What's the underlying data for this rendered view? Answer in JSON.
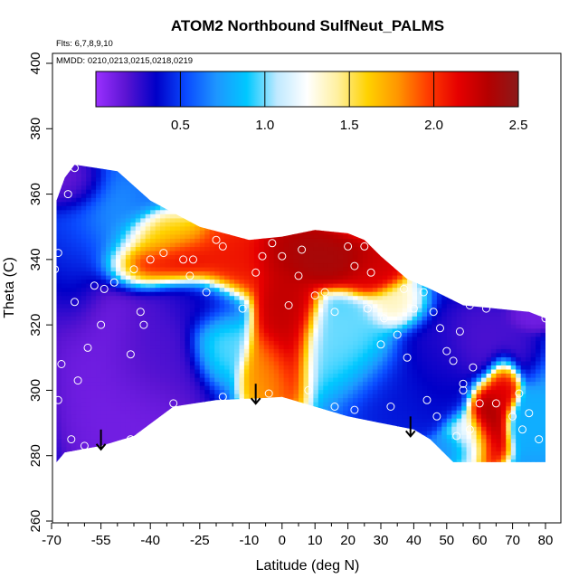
{
  "chart_data": {
    "type": "heatmap",
    "title": "ATOM2 Northbound SulfNeut_PALMS",
    "flights_note": "Flts: 6,7,8,9,10",
    "dates_note": "MMDD: 0210,0213,0215,0218,0219",
    "xlabel": "Latitude (deg N)",
    "ylabel": "Theta (C)",
    "xlim": [
      -70,
      80
    ],
    "ylim": [
      260,
      400
    ],
    "x_tick_labels": [
      -70,
      -55,
      -40,
      -25,
      -10,
      0,
      10,
      20,
      30,
      40,
      50,
      60,
      70,
      80
    ],
    "x_minor_ticks": [
      -65,
      -60,
      -50,
      -45,
      -35,
      -30,
      -20,
      -15,
      -5,
      5,
      15,
      25,
      35,
      45,
      55,
      65,
      75
    ],
    "y_ticks": [
      260,
      280,
      300,
      320,
      340,
      360,
      380,
      400
    ],
    "colorbar": {
      "range": [
        0,
        2.5
      ],
      "ticks": [
        0.5,
        1.0,
        1.5,
        2.0,
        2.5
      ],
      "tick_labels": [
        "0.5",
        "1.0",
        "1.5",
        "2.0",
        "2.5"
      ],
      "colors": [
        "#9b30ff",
        "#5a14d2",
        "#0000c8",
        "#0a4bff",
        "#1e96ff",
        "#00c8ff",
        "#bfe9ff",
        "#ffffff",
        "#fff0a0",
        "#ffd200",
        "#ff9600",
        "#ff3c00",
        "#e60000",
        "#b40000",
        "#8b1a1a"
      ]
    },
    "field": {
      "envelope_top": [
        [
          -68.5,
          358
        ],
        [
          -66,
          365
        ],
        [
          -63,
          369
        ],
        [
          -50,
          367
        ],
        [
          -40,
          358
        ],
        [
          -25,
          350
        ],
        [
          -10,
          346
        ],
        [
          0,
          347
        ],
        [
          10,
          349
        ],
        [
          20,
          348
        ],
        [
          25,
          346
        ],
        [
          30,
          341
        ],
        [
          38,
          334
        ],
        [
          45,
          331
        ],
        [
          55,
          326
        ],
        [
          65,
          325
        ],
        [
          75,
          324
        ],
        [
          80,
          322
        ]
      ],
      "envelope_bottom": [
        [
          -68.5,
          278
        ],
        [
          -66,
          281
        ],
        [
          -55,
          283
        ],
        [
          -45,
          286
        ],
        [
          -33,
          295
        ],
        [
          -20,
          297
        ],
        [
          -8,
          297.5
        ],
        [
          0,
          298
        ],
        [
          10,
          295
        ],
        [
          20,
          292
        ],
        [
          30,
          290
        ],
        [
          40,
          288
        ],
        [
          45,
          285
        ],
        [
          52,
          278
        ],
        [
          80,
          278
        ]
      ],
      "anomalies": [
        {
          "x": -56,
          "y": 315,
          "v": 0.1,
          "rx": 10,
          "ry": 30
        },
        {
          "x": -45,
          "y": 290,
          "v": 0.1,
          "rx": 12,
          "ry": 12
        },
        {
          "x": -40,
          "y": 312,
          "v": 0.2,
          "rx": 12,
          "ry": 15
        },
        {
          "x": -55,
          "y": 350,
          "v": 0.8,
          "rx": 8,
          "ry": 12
        },
        {
          "x": -62,
          "y": 340,
          "v": 0.5,
          "rx": 6,
          "ry": 15
        },
        {
          "x": -63,
          "y": 362,
          "v": 0.1,
          "rx": 6,
          "ry": 6
        },
        {
          "x": -45,
          "y": 338,
          "v": 2.3,
          "rx": 8,
          "ry": 5
        },
        {
          "x": -32,
          "y": 340,
          "v": 2.2,
          "rx": 8,
          "ry": 5
        },
        {
          "x": -38,
          "y": 345,
          "v": 1.6,
          "rx": 10,
          "ry": 5
        },
        {
          "x": -15,
          "y": 340,
          "v": 2.1,
          "rx": 10,
          "ry": 8
        },
        {
          "x": 0,
          "y": 325,
          "v": 2.3,
          "rx": 6,
          "ry": 18
        },
        {
          "x": 15,
          "y": 339,
          "v": 2.4,
          "rx": 12,
          "ry": 5
        },
        {
          "x": 27,
          "y": 336,
          "v": 2.2,
          "rx": 6,
          "ry": 5
        },
        {
          "x": 5,
          "y": 342,
          "v": 2.4,
          "rx": 10,
          "ry": 6
        },
        {
          "x": -5,
          "y": 305,
          "v": 1.8,
          "rx": 5,
          "ry": 8
        },
        {
          "x": -20,
          "y": 315,
          "v": 1.0,
          "rx": 6,
          "ry": 8
        },
        {
          "x": -25,
          "y": 325,
          "v": 0.3,
          "rx": 8,
          "ry": 6
        },
        {
          "x": 20,
          "y": 312,
          "v": 1.0,
          "rx": 10,
          "ry": 10
        },
        {
          "x": 35,
          "y": 325,
          "v": 1.4,
          "rx": 6,
          "ry": 5
        },
        {
          "x": 45,
          "y": 310,
          "v": 0.3,
          "rx": 8,
          "ry": 12
        },
        {
          "x": 60,
          "y": 315,
          "v": 0.2,
          "rx": 10,
          "ry": 8
        },
        {
          "x": 75,
          "y": 322,
          "v": 0.1,
          "rx": 5,
          "ry": 3
        },
        {
          "x": 62,
          "y": 290,
          "v": 2.4,
          "rx": 4,
          "ry": 8
        },
        {
          "x": 66,
          "y": 300,
          "v": 2.2,
          "rx": 3,
          "ry": 6
        },
        {
          "x": 56,
          "y": 285,
          "v": 1.2,
          "rx": 5,
          "ry": 5
        },
        {
          "x": 75,
          "y": 290,
          "v": 0.8,
          "rx": 5,
          "ry": 5
        },
        {
          "x": 35,
          "y": 300,
          "v": 0.4,
          "rx": 12,
          "ry": 10
        },
        {
          "x": 50,
          "y": 282,
          "v": 0.7,
          "rx": 5,
          "ry": 3
        }
      ]
    },
    "sample_points": [
      [
        -66,
        369
      ],
      [
        -63,
        368
      ],
      [
        -65,
        360
      ],
      [
        -68,
        342
      ],
      [
        -69,
        337
      ],
      [
        -63,
        327
      ],
      [
        -59,
        313
      ],
      [
        -67,
        308
      ],
      [
        -62,
        303
      ],
      [
        -68,
        297
      ],
      [
        -64,
        285
      ],
      [
        -60,
        283
      ],
      [
        -57,
        332
      ],
      [
        -54,
        331
      ],
      [
        -55,
        320
      ],
      [
        -51,
        333
      ],
      [
        -45,
        337
      ],
      [
        -40,
        340
      ],
      [
        -43,
        324
      ],
      [
        -42,
        320
      ],
      [
        -46,
        311
      ],
      [
        -36,
        342
      ],
      [
        -30,
        340
      ],
      [
        -27,
        340
      ],
      [
        -23,
        330
      ],
      [
        -20,
        346
      ],
      [
        -18,
        344
      ],
      [
        -28,
        335
      ],
      [
        -12,
        325
      ],
      [
        -8,
        336
      ],
      [
        -6,
        341
      ],
      [
        -3,
        345
      ],
      [
        0,
        341
      ],
      [
        2,
        326
      ],
      [
        5,
        335
      ],
      [
        6,
        343
      ],
      [
        8,
        300
      ],
      [
        10,
        329
      ],
      [
        13,
        330
      ],
      [
        16,
        324
      ],
      [
        20,
        344
      ],
      [
        22,
        338
      ],
      [
        25,
        344
      ],
      [
        27,
        336
      ],
      [
        16,
        295
      ],
      [
        22,
        294
      ],
      [
        26,
        325
      ],
      [
        30,
        314
      ],
      [
        31,
        322
      ],
      [
        35,
        317
      ],
      [
        33,
        295
      ],
      [
        37,
        331
      ],
      [
        38,
        310
      ],
      [
        40,
        325
      ],
      [
        43,
        330
      ],
      [
        46,
        324
      ],
      [
        48,
        319
      ],
      [
        50,
        312
      ],
      [
        52,
        309
      ],
      [
        54,
        318
      ],
      [
        57,
        326
      ],
      [
        62,
        325
      ],
      [
        44,
        297
      ],
      [
        47,
        292
      ],
      [
        55,
        302
      ],
      [
        58,
        307
      ],
      [
        55,
        300
      ],
      [
        60,
        296
      ],
      [
        53,
        286
      ],
      [
        57,
        288
      ],
      [
        65,
        296
      ],
      [
        70,
        292
      ],
      [
        72,
        299
      ],
      [
        75,
        293
      ],
      [
        73,
        288
      ],
      [
        78,
        285
      ],
      [
        80,
        322
      ],
      [
        -33,
        296
      ],
      [
        -46,
        285
      ],
      [
        -18,
        298
      ],
      [
        -4,
        299
      ]
    ],
    "arrows": [
      [
        -55,
        288
      ],
      [
        -8,
        302
      ],
      [
        39,
        292
      ]
    ]
  }
}
